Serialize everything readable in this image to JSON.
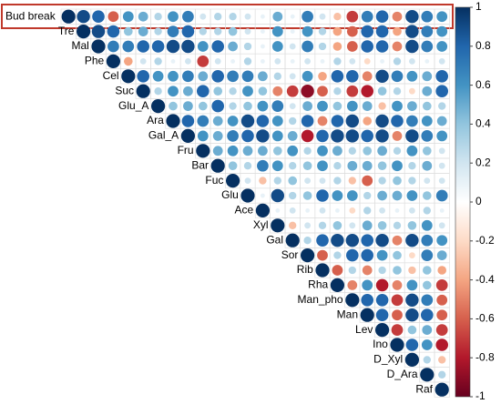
{
  "chart_data": {
    "type": "corrplot",
    "variables": [
      "Bud break",
      "Tre",
      "Mal",
      "Phe",
      "Cel",
      "Suc",
      "Glu_A",
      "Ara",
      "Gal_A",
      "Fru",
      "Bar",
      "Fuc",
      "Glu",
      "Ace",
      "Xyl",
      "Gal",
      "Sor",
      "Rib",
      "Rha",
      "Man_pho",
      "Man",
      "Lev",
      "Ino",
      "D_Xyl",
      "D_Ara",
      "Raf"
    ],
    "values": [
      [
        1,
        0.9,
        0.8,
        -0.6,
        0.6,
        0.5,
        0.3,
        0.6,
        0.7,
        0.2,
        0.3,
        0.3,
        0.2,
        0.1,
        0.5,
        0.1,
        0.7,
        0.2,
        -0.3,
        -0.7,
        0.7,
        0.8,
        -0.5,
        0.9,
        0.7,
        0.6
      ],
      [
        1,
        0.9,
        0.8,
        0.4,
        0.5,
        0.3,
        0.7,
        0.8,
        0.3,
        0.3,
        0.4,
        0.2,
        0.1,
        0.6,
        0.1,
        0.6,
        0.3,
        -0.4,
        -0.6,
        0.8,
        0.8,
        -0.4,
        0.9,
        0.7,
        0.6
      ],
      [
        1,
        0.7,
        0.7,
        0.8,
        0.8,
        0.9,
        0.9,
        0.6,
        0.8,
        0.5,
        0.3,
        0.1,
        0.6,
        0.2,
        0.7,
        0.3,
        -0.4,
        -0.6,
        0.8,
        0.8,
        -0.5,
        0.9,
        0.7,
        0.6
      ],
      [
        1,
        -0.4,
        0.2,
        0.3,
        0.1,
        0.2,
        -0.7,
        0.2,
        0.1,
        0.3,
        0.1,
        0.2,
        0.1,
        0.2,
        0.1,
        0.3,
        0.2,
        -0.2,
        0.1,
        0.3,
        0.2,
        0.1,
        0.2
      ],
      [
        1,
        0.8,
        0.6,
        0.6,
        0.7,
        0.5,
        0.8,
        0.7,
        0.7,
        0.5,
        0.3,
        0.2,
        0.6,
        -0.4,
        0.8,
        0.8,
        -0.5,
        0.9,
        0.7,
        0.6,
        0.5,
        0.8
      ],
      [
        1,
        0.3,
        0.6,
        0.5,
        0.8,
        0.4,
        0.3,
        0.6,
        0.4,
        -0.5,
        -0.7,
        -0.9,
        -0.6,
        0.3,
        -0.7,
        -0.8,
        0.4,
        0.3,
        -0.2,
        0.5,
        0.8
      ],
      [
        1,
        0.4,
        0.5,
        0.4,
        0.8,
        0.3,
        0.4,
        0.6,
        0.7,
        0.2,
        0.5,
        0.6,
        0.4,
        0.6,
        0.5,
        -0.3,
        0.6,
        0.5,
        0.4,
        0.3
      ],
      [
        1,
        0.8,
        0.7,
        0.5,
        0.6,
        0.9,
        0.8,
        0.6,
        0.3,
        0.8,
        -0.5,
        0.8,
        0.9,
        -0.4,
        0.9,
        0.8,
        0.7,
        0.6,
        0.5
      ],
      [
        1,
        0.6,
        0.5,
        0.7,
        0.8,
        0.9,
        0.6,
        0.5,
        -0.8,
        0.8,
        0.9,
        0.9,
        0.8,
        0.9,
        -0.5,
        0.9,
        0.7,
        0.6
      ],
      [
        1,
        0.5,
        0.6,
        0.5,
        0.5,
        0.4,
        0.6,
        0.3,
        0.6,
        0.5,
        0.3,
        0.4,
        0.5,
        0.3,
        0.6,
        0.4,
        0.2
      ],
      [
        1,
        0.4,
        0.3,
        0.7,
        0.6,
        0.3,
        0.4,
        0.6,
        0.3,
        0.5,
        0.5,
        0.4,
        0.6,
        0.3,
        0.5,
        0.2
      ],
      [
        1,
        0.2,
        -0.3,
        0.3,
        0.4,
        0.2,
        0.2,
        0.3,
        -0.3,
        -0.6,
        0.3,
        0.4,
        0.3,
        0.2,
        0.2
      ],
      [
        1,
        0.1,
        0.9,
        0.3,
        0.4,
        0.8,
        0.6,
        0.6,
        0.3,
        0.5,
        0.5,
        0.6,
        0.4,
        0.7
      ],
      [
        1,
        0.1,
        0.2,
        0.1,
        0.2,
        0.1,
        -0.2,
        0.3,
        0.2,
        0.1,
        0.2,
        0.3,
        0.1
      ],
      [
        1,
        -0.3,
        0.2,
        0.3,
        0.4,
        0.2,
        0.5,
        0.4,
        0.3,
        0.4,
        0.6,
        0.2
      ],
      [
        1,
        0.3,
        0.8,
        0.9,
        0.9,
        0.8,
        0.9,
        -0.5,
        0.9,
        0.7,
        0.6
      ],
      [
        1,
        -0.6,
        0.3,
        0.8,
        0.8,
        0.6,
        0.4,
        -0.2,
        0.7,
        0.5
      ],
      [
        1,
        -0.6,
        0.3,
        -0.5,
        0.3,
        0.4,
        -0.3,
        0.4,
        -0.4
      ],
      [
        1,
        -0.5,
        0.6,
        -0.8,
        -0.5,
        0.6,
        0.4,
        -0.7
      ],
      [
        1,
        0.8,
        0.8,
        -0.7,
        0.9,
        0.7,
        -0.6
      ],
      [
        1,
        0.8,
        -0.6,
        0.9,
        0.8,
        -0.6
      ],
      [
        1,
        -0.7,
        0.4,
        0.5,
        -0.7
      ],
      [
        1,
        0.8,
        0.6,
        -0.8
      ],
      [
        1,
        0.3,
        -0.3
      ],
      [
        1,
        0.3
      ],
      [
        1
      ]
    ],
    "colormap": [
      "#67001F",
      "#B2182B",
      "#D6604D",
      "#F4A582",
      "#FDDBC7",
      "#FFFFFF",
      "#D1E5F0",
      "#92C5DE",
      "#4393C3",
      "#2166AC",
      "#053061"
    ],
    "clim": [
      -1,
      1
    ],
    "cticks": [
      1,
      0.8,
      0.6,
      0.4,
      0.2,
      0,
      -0.2,
      -0.4,
      -0.6,
      -0.8,
      -1
    ]
  }
}
